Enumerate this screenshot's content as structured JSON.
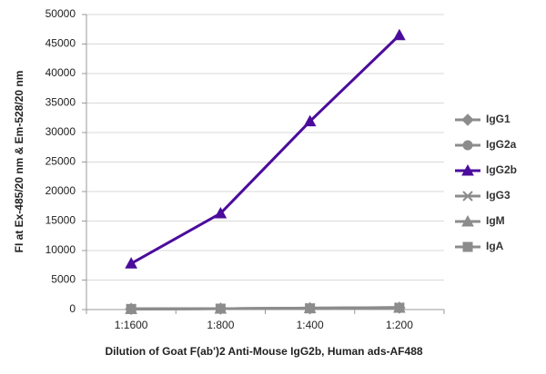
{
  "chart_data": {
    "type": "line",
    "x_label": "Dilution of Goat F(ab')2 Anti-Mouse IgG2b, Human ads-AF488",
    "y_label": "FI at Ex-485/20 nm & Em-528/20 nm",
    "categories": [
      "1:1600",
      "1:800",
      "1:400",
      "1:200"
    ],
    "series": [
      {
        "name": "IgG1",
        "color": "#8c8c8c",
        "marker": "diamond",
        "values": [
          100,
          150,
          200,
          300
        ]
      },
      {
        "name": "IgG2a",
        "color": "#8c8c8c",
        "marker": "circle",
        "values": [
          120,
          150,
          200,
          350
        ]
      },
      {
        "name": "IgG2b",
        "color": "#4b0c9c",
        "marker": "triangle",
        "values": [
          7800,
          16300,
          31900,
          46500
        ]
      },
      {
        "name": "IgG3",
        "color": "#8c8c8c",
        "marker": "x",
        "values": [
          100,
          150,
          250,
          350
        ]
      },
      {
        "name": "IgM",
        "color": "#8c8c8c",
        "marker": "triangle",
        "values": [
          100,
          150,
          250,
          300
        ]
      },
      {
        "name": "IgA",
        "color": "#8c8c8c",
        "marker": "square",
        "values": [
          100,
          150,
          200,
          300
        ]
      }
    ],
    "ylim": [
      0,
      50000
    ],
    "yticks": [
      0,
      5000,
      10000,
      15000,
      20000,
      25000,
      30000,
      35000,
      40000,
      45000,
      50000
    ],
    "grid": true
  }
}
